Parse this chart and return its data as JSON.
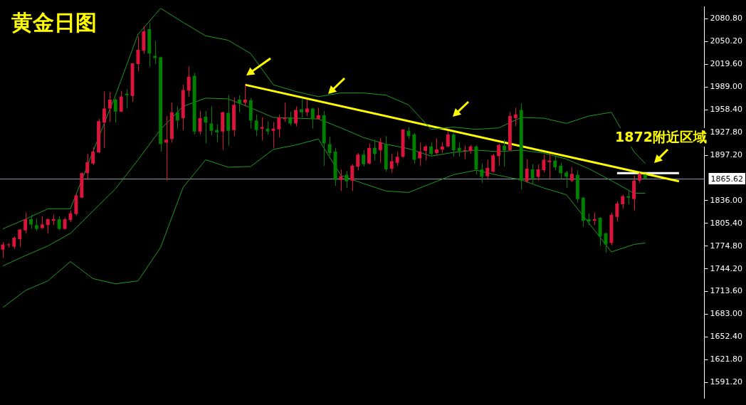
{
  "chart_data": {
    "type": "candlestick",
    "title": "黄金日图",
    "annotations": [
      "1872附近区域"
    ],
    "categories": [
      null,
      null,
      null,
      null,
      null,
      null,
      null,
      null,
      null,
      null,
      null,
      null,
      null,
      null,
      null,
      null,
      null,
      null,
      null,
      null,
      null,
      null,
      null,
      null,
      null,
      null,
      null,
      null,
      null,
      null,
      null,
      null,
      null,
      null,
      null,
      null,
      null,
      null,
      null,
      null,
      null,
      null,
      null,
      null,
      null,
      null,
      null,
      null,
      null,
      null,
      null,
      null,
      null,
      null,
      null,
      null,
      null,
      null,
      null,
      null,
      null,
      null,
      null,
      null,
      null,
      null,
      null,
      null,
      null,
      null,
      null,
      null,
      null,
      null,
      null,
      null,
      null,
      null,
      null,
      null,
      null,
      null,
      null,
      null,
      null,
      null,
      null,
      null,
      null,
      null,
      null,
      null,
      null,
      null,
      null,
      null,
      null,
      null,
      null,
      null,
      null,
      null,
      null,
      null,
      null,
      null,
      null,
      null,
      null,
      null,
      null,
      null,
      null,
      null,
      null,
      null,
      null,
      null,
      null,
      null,
      null,
      null,
      null,
      null,
      null
    ],
    "ohlc": [
      [
        1770,
        1780,
        1759,
        1777
      ],
      [
        1776,
        1779,
        1773,
        1777
      ],
      [
        1774,
        1788,
        1771,
        1786
      ],
      [
        1784,
        1798,
        1774,
        1797
      ],
      [
        1796,
        1820,
        1792,
        1811
      ],
      [
        1811,
        1817,
        1798,
        1804
      ],
      [
        1803,
        1812,
        1795,
        1798
      ],
      [
        1799,
        1815,
        1798,
        1804
      ],
      [
        1803,
        1812,
        1792,
        1811
      ],
      [
        1809,
        1817,
        1803,
        1811
      ],
      [
        1811,
        1815,
        1796,
        1798
      ],
      [
        1798,
        1813,
        1797,
        1811
      ],
      [
        1810,
        1823,
        1807,
        1819
      ],
      [
        1818,
        1845,
        1816,
        1843
      ],
      [
        1840,
        1874,
        1840,
        1873
      ],
      [
        1873,
        1899,
        1864,
        1888
      ],
      [
        1886,
        1908,
        1884,
        1902
      ],
      [
        1901,
        1946,
        1900,
        1943
      ],
      [
        1941,
        1983,
        1907,
        1960
      ],
      [
        1960,
        1982,
        1942,
        1972
      ],
      [
        1972,
        1974,
        1941,
        1956
      ],
      [
        1956,
        1984,
        1955,
        1976
      ],
      [
        1980,
        1986,
        1960,
        1978
      ],
      [
        1977,
        2021,
        1969,
        2021
      ],
      [
        2020,
        2057,
        2010,
        2039
      ],
      [
        2038,
        2071,
        2034,
        2064
      ],
      [
        2067,
        2075,
        2016,
        2034
      ],
      [
        2031,
        2051,
        2020,
        2028
      ],
      [
        2029,
        2030,
        1902,
        1912
      ],
      [
        1914,
        1950,
        1863,
        1918
      ],
      [
        1919,
        1968,
        1914,
        1955
      ],
      [
        1955,
        1963,
        1933,
        1944
      ],
      [
        1947,
        1992,
        1931,
        1985
      ],
      [
        1984,
        2017,
        1976,
        2003
      ],
      [
        2004,
        2008,
        1925,
        1929
      ],
      [
        1929,
        1957,
        1925,
        1947
      ],
      [
        1949,
        1957,
        1913,
        1941
      ],
      [
        1940,
        1963,
        1924,
        1930
      ],
      [
        1931,
        1939,
        1915,
        1928
      ],
      [
        1929,
        1956,
        1904,
        1955
      ],
      [
        1954,
        1978,
        1910,
        1930
      ],
      [
        1931,
        1975,
        1923,
        1965
      ],
      [
        1972,
        1978,
        1955,
        1967
      ],
      [
        1968,
        1993,
        1963,
        1972
      ],
      [
        1971,
        1974,
        1933,
        1944
      ],
      [
        1944,
        1952,
        1923,
        1931
      ],
      [
        1933,
        1948,
        1917,
        1935
      ],
      [
        1933,
        1943,
        1925,
        1929
      ],
      [
        1930,
        1942,
        1907,
        1933
      ],
      [
        1932,
        1952,
        1921,
        1948
      ],
      [
        1946,
        1968,
        1942,
        1948
      ],
      [
        1948,
        1956,
        1937,
        1940
      ],
      [
        1940,
        1963,
        1936,
        1958
      ],
      [
        1959,
        1973,
        1948,
        1955
      ],
      [
        1955,
        1972,
        1950,
        1960
      ],
      [
        1960,
        1961,
        1933,
        1946
      ],
      [
        1946,
        1961,
        1945,
        1951
      ],
      [
        1951,
        1957,
        1883,
        1913
      ],
      [
        1912,
        1922,
        1896,
        1900
      ],
      [
        1902,
        1907,
        1856,
        1864
      ],
      [
        1864,
        1878,
        1849,
        1869
      ],
      [
        1871,
        1876,
        1853,
        1862
      ],
      [
        1863,
        1885,
        1849,
        1883
      ],
      [
        1882,
        1900,
        1877,
        1898
      ],
      [
        1898,
        1904,
        1882,
        1885
      ],
      [
        1886,
        1913,
        1885,
        1907
      ],
      [
        1907,
        1918,
        1890,
        1899
      ],
      [
        1904,
        1920,
        1887,
        1915
      ],
      [
        1912,
        1923,
        1875,
        1878
      ],
      [
        1879,
        1899,
        1873,
        1889
      ],
      [
        1887,
        1902,
        1883,
        1895
      ],
      [
        1895,
        1932,
        1894,
        1932
      ],
      [
        1930,
        1935,
        1919,
        1923
      ],
      [
        1925,
        1927,
        1886,
        1891
      ],
      [
        1893,
        1914,
        1883,
        1902
      ],
      [
        1903,
        1911,
        1890,
        1909
      ],
      [
        1909,
        1915,
        1897,
        1899
      ],
      [
        1900,
        1920,
        1898,
        1905
      ],
      [
        1905,
        1915,
        1900,
        1909
      ],
      [
        1909,
        1930,
        1908,
        1925
      ],
      [
        1925,
        1927,
        1895,
        1904
      ],
      [
        1907,
        1915,
        1895,
        1903
      ],
      [
        1903,
        1910,
        1892,
        1904
      ],
      [
        1903,
        1911,
        1899,
        1909
      ],
      [
        1909,
        1911,
        1871,
        1878
      ],
      [
        1878,
        1886,
        1860,
        1868
      ],
      [
        1869,
        1891,
        1866,
        1880
      ],
      [
        1875,
        1899,
        1874,
        1897
      ],
      [
        1896,
        1913,
        1883,
        1911
      ],
      [
        1910,
        1918,
        1882,
        1904
      ],
      [
        1904,
        1955,
        1903,
        1950
      ],
      [
        1947,
        1961,
        1936,
        1952
      ],
      [
        1958,
        1967,
        1851,
        1863
      ],
      [
        1862,
        1892,
        1860,
        1879
      ],
      [
        1878,
        1885,
        1858,
        1866
      ],
      [
        1868,
        1885,
        1863,
        1878
      ],
      [
        1877,
        1898,
        1874,
        1891
      ],
      [
        1888,
        1899,
        1866,
        1890
      ],
      [
        1890,
        1895,
        1877,
        1881
      ],
      [
        1883,
        1887,
        1865,
        1873
      ],
      [
        1874,
        1876,
        1853,
        1868
      ],
      [
        1863,
        1881,
        1861,
        1872
      ],
      [
        1871,
        1877,
        1833,
        1838
      ],
      [
        1840,
        1841,
        1801,
        1809
      ],
      [
        1811,
        1819,
        1803,
        1808
      ],
      [
        1809,
        1820,
        1803,
        1811
      ],
      [
        1813,
        1814,
        1775,
        1788
      ],
      [
        1792,
        1793,
        1766,
        1777
      ],
      [
        1779,
        1820,
        1776,
        1817
      ],
      [
        1814,
        1835,
        1808,
        1832
      ],
      [
        1831,
        1844,
        1825,
        1842
      ],
      [
        1842,
        1849,
        1831,
        1840
      ],
      [
        1838,
        1870,
        1823,
        1863
      ],
      [
        1863,
        1874,
        1860,
        1872
      ],
      [
        1871,
        1872,
        1865,
        1866
      ],
      null,
      null,
      null,
      null,
      null,
      null,
      null,
      null,
      null,
      null
    ],
    "colors": [
      "#dc143c",
      "#dc143c",
      "#dc143c",
      "#dc143c",
      "#dc143c",
      "#008000",
      "#008000",
      "#dc143c",
      "#dc143c",
      "#dc143c",
      "#008000",
      "#dc143c",
      "#dc143c",
      "#dc143c",
      "#dc143c",
      "#dc143c",
      "#dc143c",
      "#dc143c",
      "#dc143c",
      "#dc143c",
      "#008000",
      "#dc143c",
      "#008000",
      "#dc143c",
      "#dc143c",
      "#dc143c",
      "#008000",
      "#008000",
      "#008000",
      "#dc143c",
      "#dc143c",
      "#008000",
      "#dc143c",
      "#dc143c",
      "#008000",
      "#dc143c",
      "#008000",
      "#008000",
      "#008000",
      "#dc143c",
      "#008000",
      "#dc143c",
      "#008000",
      "#dc143c",
      "#008000",
      "#008000",
      "#dc143c",
      "#008000",
      "#dc143c",
      "#dc143c",
      "#dc143c",
      "#008000",
      "#dc143c",
      "#008000",
      "#dc143c",
      "#008000",
      "#dc143c",
      "#008000",
      "#008000",
      "#008000",
      "#dc143c",
      "#008000",
      "#dc143c",
      "#dc143c",
      "#008000",
      "#dc143c",
      "#008000",
      "#dc143c",
      "#008000",
      "#dc143c",
      "#dc143c",
      "#dc143c",
      "#008000",
      "#008000",
      "#dc143c",
      "#dc143c",
      "#008000",
      "#dc143c",
      "#dc143c",
      "#dc143c",
      "#008000",
      "#008000",
      "#dc143c",
      "#dc143c",
      "#008000",
      "#008000",
      "#dc143c",
      "#dc143c",
      "#dc143c",
      "#008000",
      "#dc143c",
      "#dc143c",
      "#008000",
      "#dc143c",
      "#008000",
      "#dc143c",
      "#dc143c",
      "#dc143c",
      "#008000",
      "#008000",
      "#008000",
      "#dc143c",
      "#008000",
      "#008000",
      "#008000",
      "#dc143c",
      "#008000",
      "#008000",
      "#dc143c",
      "#dc143c",
      "#dc143c",
      "#008000",
      "#dc143c",
      "#dc143c",
      "#008000",
      null,
      null,
      null,
      null,
      null,
      null,
      null,
      null,
      null,
      null
    ],
    "series": [
      {
        "type": "line",
        "color": "#1f9a1f",
        "values": [
          1798,
          null,
          null,
          null,
          1811,
          null,
          null,
          null,
          1825,
          null,
          null,
          null,
          1825,
          null,
          null,
          null,
          1902,
          null,
          null,
          null,
          1978,
          null,
          null,
          null,
          2060,
          null,
          null,
          null,
          2095,
          null,
          null,
          null,
          2076,
          null,
          null,
          null,
          2058,
          null,
          null,
          null,
          2052,
          null,
          null,
          null,
          2034,
          null,
          null,
          null,
          1992,
          null,
          null,
          null,
          1983,
          null,
          null,
          null,
          1976,
          null,
          null,
          null,
          1981,
          null,
          null,
          null,
          1981,
          null,
          null,
          null,
          1978,
          null,
          null,
          null,
          1965,
          null,
          null,
          null,
          1932,
          null,
          null,
          null,
          1935,
          null,
          null,
          null,
          1932,
          null,
          null,
          null,
          1934,
          null,
          null,
          null,
          1948,
          null,
          null,
          null,
          1947,
          null,
          null,
          null,
          1940,
          null,
          null,
          null,
          1950,
          null,
          null,
          null,
          1955,
          null,
          null,
          null,
          1902,
          null,
          1886,
          null,
          null,
          null,
          null,
          null,
          null,
          null,
          null,
          null,
          null
        ]
      },
      {
        "type": "line",
        "color": "#1f9a1f",
        "values": [
          1748,
          null,
          null,
          null,
          1762,
          null,
          null,
          null,
          1775,
          null,
          null,
          null,
          1792,
          null,
          null,
          null,
          1822,
          null,
          null,
          null,
          1852,
          null,
          null,
          null,
          1891,
          null,
          null,
          null,
          1932,
          null,
          null,
          null,
          1963,
          null,
          null,
          null,
          1974,
          null,
          null,
          null,
          1973,
          null,
          null,
          null,
          1961,
          null,
          null,
          null,
          1948,
          null,
          null,
          null,
          1947,
          null,
          null,
          null,
          1946,
          null,
          null,
          null,
          1934,
          null,
          null,
          null,
          1921,
          null,
          null,
          null,
          1912,
          null,
          null,
          null,
          1906,
          null,
          null,
          null,
          1896,
          null,
          null,
          null,
          1901,
          null,
          null,
          null,
          1904,
          null,
          null,
          null,
          1902,
          null,
          null,
          null,
          1904,
          null,
          null,
          null,
          1900,
          null,
          null,
          null,
          1892,
          null,
          null,
          null,
          1879,
          null,
          null,
          null,
          1863,
          null,
          null,
          null,
          1846,
          null,
          1846,
          null,
          null,
          null,
          null,
          null,
          null,
          null,
          null,
          null,
          null
        ]
      },
      {
        "type": "line",
        "color": "#1f9a1f",
        "values": [
          1692,
          null,
          null,
          null,
          1715,
          null,
          null,
          null,
          1728,
          null,
          null,
          null,
          1754,
          null,
          null,
          null,
          1731,
          null,
          null,
          null,
          1724,
          null,
          null,
          null,
          1728,
          null,
          null,
          null,
          1773,
          null,
          null,
          null,
          1854,
          null,
          null,
          null,
          1891,
          null,
          null,
          null,
          1881,
          null,
          null,
          null,
          1882,
          null,
          null,
          null,
          1905,
          null,
          null,
          null,
          1911,
          null,
          null,
          null,
          1919,
          null,
          null,
          null,
          1870,
          null,
          null,
          null,
          1859,
          null,
          null,
          null,
          1849,
          null,
          null,
          null,
          1847,
          null,
          null,
          null,
          1859,
          null,
          null,
          null,
          1871,
          null,
          null,
          null,
          1877,
          null,
          null,
          null,
          1870,
          null,
          null,
          null,
          1864,
          null,
          null,
          null,
          1853,
          null,
          null,
          null,
          1844,
          null,
          null,
          null,
          1806,
          null,
          null,
          null,
          1767,
          null,
          null,
          null,
          1777,
          null,
          1779,
          null,
          null,
          null,
          null,
          null,
          null,
          null,
          null,
          null,
          null
        ]
      },
      {
        "type": "line",
        "color": "#ffff00",
        "values": [
          null,
          null,
          null,
          null,
          null,
          null,
          null,
          null,
          null,
          null,
          null,
          null,
          null,
          null,
          null,
          null,
          null,
          null,
          null,
          null,
          null,
          null,
          null,
          null,
          null,
          null,
          null,
          null,
          null,
          null,
          null,
          null,
          null,
          null,
          null,
          null,
          null,
          null,
          null,
          null,
          null,
          null,
          null,
          1992,
          null,
          null,
          null,
          null,
          null,
          null,
          null,
          null,
          null,
          null,
          null,
          null,
          null,
          null,
          null,
          null,
          null,
          null,
          null,
          null,
          null,
          null,
          null,
          null,
          null,
          null,
          null,
          null,
          null,
          null,
          null,
          null,
          null,
          null,
          null,
          null,
          null,
          null,
          null,
          null,
          null,
          null,
          null,
          null,
          null,
          null,
          null,
          null,
          null,
          null,
          null,
          null,
          null,
          null,
          null,
          null,
          null,
          null,
          null,
          null,
          null,
          null,
          null,
          null,
          null,
          null,
          null,
          null,
          null,
          null,
          null,
          null,
          null,
          null,
          null,
          null,
          1862,
          null,
          null,
          null,
          null
        ]
      },
      {
        "type": "line",
        "color": "#ffffff",
        "values": [
          null,
          null,
          null,
          null,
          null,
          null,
          null,
          null,
          null,
          null,
          null,
          null,
          null,
          null,
          null,
          null,
          null,
          null,
          null,
          null,
          null,
          null,
          null,
          null,
          null,
          null,
          null,
          null,
          null,
          null,
          null,
          null,
          null,
          null,
          null,
          null,
          null,
          null,
          null,
          null,
          null,
          null,
          null,
          null,
          null,
          null,
          null,
          null,
          null,
          null,
          null,
          null,
          null,
          null,
          null,
          null,
          null,
          null,
          null,
          null,
          null,
          null,
          null,
          null,
          null,
          null,
          null,
          null,
          null,
          null,
          null,
          null,
          null,
          null,
          null,
          null,
          null,
          null,
          null,
          null,
          null,
          null,
          null,
          null,
          null,
          null,
          null,
          null,
          null,
          null,
          null,
          null,
          null,
          null,
          null,
          null,
          null,
          null,
          null,
          null,
          null,
          null,
          null,
          null,
          null,
          null,
          null,
          null,
          null,
          1873,
          null,
          null,
          null,
          null,
          null,
          null,
          null,
          null,
          null,
          null,
          1873,
          null,
          null,
          null,
          null
        ]
      }
    ],
    "ylim": [
      1570,
      2097
    ],
    "yticks": [
      {
        "value": 2080.8,
        "label": "2080.80"
      },
      {
        "value": 2050.2,
        "label": "2050.20"
      },
      {
        "value": 2019.6,
        "label": "2019.60"
      },
      {
        "value": 1989,
        "label": "1989.00"
      },
      {
        "value": 1958.4,
        "label": "1958.40"
      },
      {
        "value": 1927.8,
        "label": "1927.80"
      },
      {
        "value": 1897.2,
        "label": "1897.20"
      },
      {
        "value": 1836,
        "label": "1836.00"
      },
      {
        "value": 1805.4,
        "label": "1805.40"
      },
      {
        "value": 1774.8,
        "label": "1774.80"
      },
      {
        "value": 1744.2,
        "label": "1744.20"
      },
      {
        "value": 1713.6,
        "label": "1713.60"
      },
      {
        "value": 1683,
        "label": "1683.00"
      },
      {
        "value": 1652.4,
        "label": "1652.40"
      },
      {
        "value": 1621.8,
        "label": "1621.80"
      },
      {
        "value": 1591.2,
        "label": "1591.20"
      }
    ],
    "ref_lines": [
      {
        "axis": "y",
        "value": 1865.62,
        "label": "1865.62",
        "color": "#8d99ae"
      }
    ],
    "grid": false,
    "legend": false,
    "tick_labels": "y"
  }
}
